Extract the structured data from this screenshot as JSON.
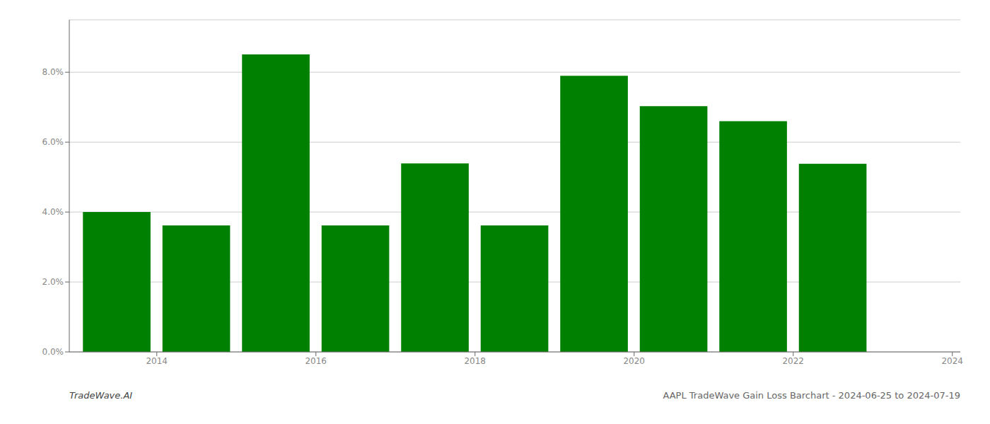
{
  "chart_data": {
    "type": "bar",
    "x": [
      2014,
      2015,
      2016,
      2017,
      2018,
      2019,
      2020,
      2021,
      2022,
      2023
    ],
    "values": [
      0.04,
      0.0362,
      0.0851,
      0.0362,
      0.0539,
      0.0362,
      0.079,
      0.0703,
      0.066,
      0.0538
    ],
    "color": "#008000",
    "xlim": [
      2013.4,
      2024.6
    ],
    "xticks": [
      {
        "value": 2014.5,
        "label": "2014"
      },
      {
        "value": 2016.5,
        "label": "2016"
      },
      {
        "value": 2018.5,
        "label": "2018"
      },
      {
        "value": 2020.5,
        "label": "2020"
      },
      {
        "value": 2022.5,
        "label": "2022"
      },
      {
        "value": 2024.5,
        "label": "2024"
      }
    ],
    "ylim": [
      0,
      0.095
    ],
    "yticks": [
      {
        "value": 0.0,
        "label": "0.0%"
      },
      {
        "value": 0.02,
        "label": "2.0%"
      },
      {
        "value": 0.04,
        "label": "4.0%"
      },
      {
        "value": 0.06,
        "label": "6.0%"
      },
      {
        "value": 0.08,
        "label": "8.0%"
      }
    ],
    "grid": true,
    "annotations": [
      "TradeWave.AI",
      "AAPL TradeWave Gain Loss Barchart - 2024-06-25 to 2024-07-19"
    ]
  }
}
